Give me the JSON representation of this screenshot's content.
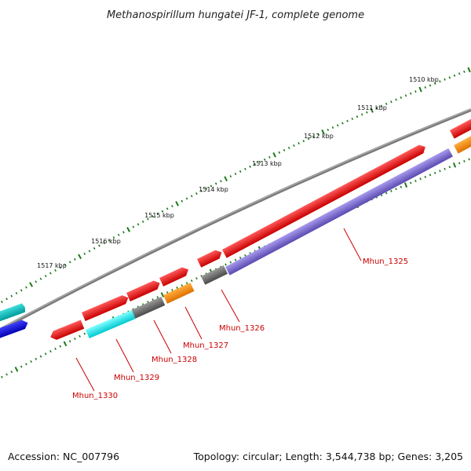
{
  "title": "Methanospirillum hungatei JF-1, complete genome",
  "footer": {
    "accession": "Accession: NC_007796",
    "summary": "Topology: circular; Length: 3,544,738 bp; Genes: 3,205"
  },
  "colors": {
    "backbone": "#7a7a7a",
    "ticks": "#1a7a1a",
    "label": "#cc0000",
    "gene_red": "#ee1111",
    "gene_blue_violet": "#7766cc",
    "gene_gray": "#666666",
    "gene_orange": "#ff8800",
    "gene_cyan": "#00e0e0",
    "gene_teal": "#00bcbc",
    "gene_blue": "#0000ee"
  },
  "ruler": {
    "labels": [
      "1510 kbp",
      "1511 kbp",
      "1512 kbp",
      "1513 kbp",
      "1514 kbp",
      "1515 kbp",
      "1516 kbp",
      "1517 kbp"
    ]
  },
  "genes": [
    {
      "name": "Mhun_1325"
    },
    {
      "name": "Mhun_1326"
    },
    {
      "name": "Mhun_1327"
    },
    {
      "name": "Mhun_1328"
    },
    {
      "name": "Mhun_1329"
    },
    {
      "name": "Mhun_1330"
    }
  ]
}
